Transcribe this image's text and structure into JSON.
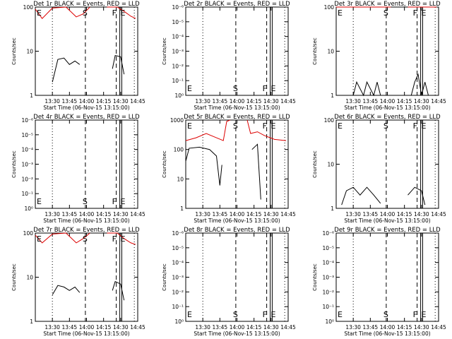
{
  "chart_data": [
    {
      "type": "line",
      "title": "Det 1r BLACK = Events, RED = LLD",
      "xlabel": "Start Time (06-Nov-15 13:15:00)",
      "ylabel": "Counts/sec",
      "x_ticks": [
        "13:30",
        "13:45",
        "14:00",
        "14:15",
        "14:30",
        "14:45"
      ],
      "y_ticks": [
        "1",
        "10",
        "100"
      ],
      "scale": "log",
      "series": [
        {
          "color": "#000000",
          "segments": [
            [
              [
                13.5,
                2.0
              ],
              [
                13.58,
                6.5
              ],
              [
                13.67,
                7.0
              ],
              [
                13.75,
                5.0
              ],
              [
                13.83,
                6.0
              ],
              [
                13.9,
                5.0
              ]
            ],
            [
              [
                14.38,
                4.0
              ],
              [
                14.42,
                8.0
              ],
              [
                14.5,
                7.5
              ],
              [
                14.55,
                3.0
              ]
            ]
          ]
        },
        {
          "color": "#dd0000",
          "segments": [
            [
              [
                13.25,
                90
              ],
              [
                13.35,
                55
              ],
              [
                13.5,
                95
              ],
              [
                13.7,
                100
              ],
              [
                13.85,
                60
              ],
              [
                13.95,
                70
              ],
              [
                14.05,
                100
              ]
            ],
            [
              [
                14.3,
                100
              ],
              [
                14.45,
                100
              ],
              [
                14.55,
                80
              ],
              [
                14.65,
                62
              ],
              [
                14.72,
                55
              ]
            ]
          ]
        }
      ],
      "markers": {
        "S": "13:59",
        "F": "14:28",
        "E": "14:31"
      }
    },
    {
      "type": "line",
      "title": "Det 2r BLACK = Events, RED = LLD",
      "xlabel": "Start Time (06-Nov-15 13:15:00)",
      "ylabel": "Counts/sec",
      "x_ticks": [
        "13:30",
        "13:45",
        "14:00",
        "14:15",
        "14:30",
        "14:45"
      ],
      "y_ticks": [
        "10⁰",
        "10⁻¹",
        "10⁻²",
        "10⁻³",
        "10⁻⁴",
        "10⁻⁵",
        "10⁻⁶"
      ],
      "scale": "linear-empty",
      "series": [],
      "markers": {
        "S": "13:59",
        "F": "14:28",
        "E": "14:31"
      }
    },
    {
      "type": "line",
      "title": "Det 3r BLACK = Events, RED = LLD",
      "xlabel": "Start Time (06-Nov-15 13:15:00)",
      "ylabel": "Counts/sec",
      "x_ticks": [
        "13:30",
        "13:45",
        "14:00",
        "14:15",
        "14:30",
        "14:45"
      ],
      "y_ticks": [
        "1",
        "10",
        "100"
      ],
      "scale": "log",
      "series": [
        {
          "color": "#000000",
          "segments": [
            [
              [
                13.5,
                1.0
              ],
              [
                13.55,
                2.0
              ],
              [
                13.65,
                1.0
              ],
              [
                13.7,
                2.0
              ],
              [
                13.8,
                1.0
              ],
              [
                13.85,
                2.0
              ],
              [
                13.9,
                1.0
              ]
            ],
            [
              [
                14.35,
                1.0
              ],
              [
                14.4,
                2.0
              ],
              [
                14.45,
                3.0
              ],
              [
                14.5,
                1.0
              ],
              [
                14.55,
                2.0
              ],
              [
                14.6,
                1.0
              ]
            ]
          ]
        },
        {
          "color": "#dd0000",
          "segments": [
            [
              [
                13.25,
                100
              ],
              [
                14.05,
                100
              ]
            ],
            [
              [
                14.3,
                100
              ],
              [
                14.72,
                100
              ]
            ]
          ]
        }
      ],
      "markers": {
        "S": "13:59",
        "F": "14:28",
        "E": "14:31"
      }
    },
    {
      "type": "line",
      "title": "Det 4r BLACK = Events, RED = LLD",
      "xlabel": "Start Time (06-Nov-15 13:15:00)",
      "ylabel": "Counts/sec",
      "x_ticks": [
        "13:30",
        "13:45",
        "14:00",
        "14:15",
        "14:30",
        "14:45"
      ],
      "y_ticks": [
        "10⁰",
        "10⁻¹",
        "10⁻²",
        "10⁻³",
        "10⁻⁴",
        "10⁻⁵",
        "10⁻⁶"
      ],
      "scale": "linear-empty",
      "series": [],
      "markers": {
        "S": "13:59",
        "F": "14:28",
        "E": "14:31"
      }
    },
    {
      "type": "line",
      "title": "Det 5r BLACK = Events, RED = LLD",
      "xlabel": "Start Time (06-Nov-15 13:15:00)",
      "ylabel": "Counts/sec",
      "x_ticks": [
        "13:30",
        "13:45",
        "14:00",
        "14:15",
        "14:30",
        "14:45"
      ],
      "y_ticks": [
        "1",
        "10",
        "100",
        "1000"
      ],
      "scale": "log3",
      "series": [
        {
          "color": "#000000",
          "segments": [
            [
              [
                13.25,
                40
              ],
              [
                13.3,
                110
              ],
              [
                13.45,
                120
              ],
              [
                13.6,
                100
              ],
              [
                13.7,
                60
              ],
              [
                13.75,
                6
              ],
              [
                13.78,
                30
              ]
            ],
            [
              [
                14.22,
                100
              ],
              [
                14.3,
                150
              ],
              [
                14.35,
                2
              ]
            ]
          ]
        },
        {
          "color": "#dd0000",
          "segments": [
            [
              [
                13.25,
                200
              ],
              [
                13.4,
                250
              ],
              [
                13.55,
                350
              ],
              [
                13.7,
                250
              ],
              [
                13.8,
                200
              ],
              [
                13.85,
                900
              ],
              [
                13.9,
                1000
              ]
            ],
            [
              [
                14.15,
                1000
              ],
              [
                14.2,
                350
              ],
              [
                14.3,
                400
              ],
              [
                14.4,
                300
              ],
              [
                14.55,
                220
              ],
              [
                14.72,
                200
              ]
            ]
          ]
        }
      ],
      "markers": {
        "S": "13:59",
        "F": "14:28",
        "E": "14:31"
      }
    },
    {
      "type": "line",
      "title": "Det 6r BLACK = Events, RED = LLD",
      "xlabel": "Start Time (06-Nov-15 13:15:00)",
      "ylabel": "Counts/sec",
      "x_ticks": [
        "13:30",
        "13:45",
        "14:00",
        "14:15",
        "14:30",
        "14:45"
      ],
      "y_ticks": [
        "1",
        "10",
        "100"
      ],
      "scale": "log",
      "series": [
        {
          "color": "#000000",
          "segments": [
            [
              [
                13.33,
                1.2
              ],
              [
                13.4,
                2.5
              ],
              [
                13.5,
                3.0
              ],
              [
                13.6,
                2.0
              ],
              [
                13.7,
                3.0
              ],
              [
                13.8,
                2.0
              ],
              [
                13.9,
                1.3
              ]
            ],
            [
              [
                14.3,
                2.0
              ],
              [
                14.4,
                3.0
              ],
              [
                14.5,
                2.5
              ],
              [
                14.55,
                1.2
              ]
            ]
          ]
        }
      ],
      "markers": {
        "S": "13:59",
        "F": "14:28",
        "E": "14:31"
      }
    },
    {
      "type": "line",
      "title": "Det 7r BLACK = Events, RED = LLD",
      "xlabel": "Start Time (06-Nov-15 13:15:00)",
      "ylabel": "Counts/sec",
      "x_ticks": [
        "13:30",
        "13:45",
        "14:00",
        "14:15",
        "14:30",
        "14:45"
      ],
      "y_ticks": [
        "1",
        "10",
        "100"
      ],
      "scale": "log",
      "series": [
        {
          "color": "#000000",
          "segments": [
            [
              [
                13.5,
                4.0
              ],
              [
                13.58,
                6.5
              ],
              [
                13.67,
                6.0
              ],
              [
                13.75,
                5.0
              ],
              [
                13.83,
                6.0
              ],
              [
                13.9,
                4.5
              ]
            ],
            [
              [
                14.38,
                5.0
              ],
              [
                14.42,
                8.0
              ],
              [
                14.5,
                7.0
              ],
              [
                14.55,
                3.0
              ]
            ]
          ]
        },
        {
          "color": "#dd0000",
          "segments": [
            [
              [
                13.25,
                90
              ],
              [
                13.35,
                60
              ],
              [
                13.5,
                95
              ],
              [
                13.7,
                100
              ],
              [
                13.85,
                60
              ],
              [
                13.95,
                75
              ],
              [
                14.05,
                100
              ]
            ],
            [
              [
                14.3,
                100
              ],
              [
                14.45,
                100
              ],
              [
                14.55,
                75
              ],
              [
                14.65,
                60
              ],
              [
                14.72,
                55
              ]
            ]
          ]
        }
      ],
      "markers": {
        "S": "13:59",
        "F": "14:28",
        "E": "14:31"
      }
    },
    {
      "type": "line",
      "title": "Det 8r BLACK = Events, RED = LLD",
      "xlabel": "Start Time (06-Nov-15 13:15:00)",
      "ylabel": "Counts/sec",
      "x_ticks": [
        "13:30",
        "13:45",
        "14:00",
        "14:15",
        "14:30",
        "14:45"
      ],
      "y_ticks": [
        "10⁰",
        "10⁻¹",
        "10⁻²",
        "10⁻³",
        "10⁻⁴",
        "10⁻⁵",
        "10⁻⁶"
      ],
      "scale": "linear-empty",
      "series": [],
      "markers": {
        "S": "13:59",
        "F": "14:28",
        "E": "14:31"
      }
    },
    {
      "type": "line",
      "title": "Det 9r BLACK = Events, RED = LLD",
      "xlabel": "Start Time (06-Nov-15 13:15:00)",
      "ylabel": "Counts/sec",
      "x_ticks": [
        "13:30",
        "13:45",
        "14:00",
        "14:15",
        "14:30",
        "14:45"
      ],
      "y_ticks": [
        "10⁰",
        "10⁻¹",
        "10⁻²",
        "10⁻³",
        "10⁻⁴",
        "10⁻⁵",
        "10⁻⁶"
      ],
      "scale": "linear-empty",
      "series": [],
      "markers": {
        "S": "13:59",
        "F": "14:28",
        "E": "14:31"
      }
    }
  ]
}
